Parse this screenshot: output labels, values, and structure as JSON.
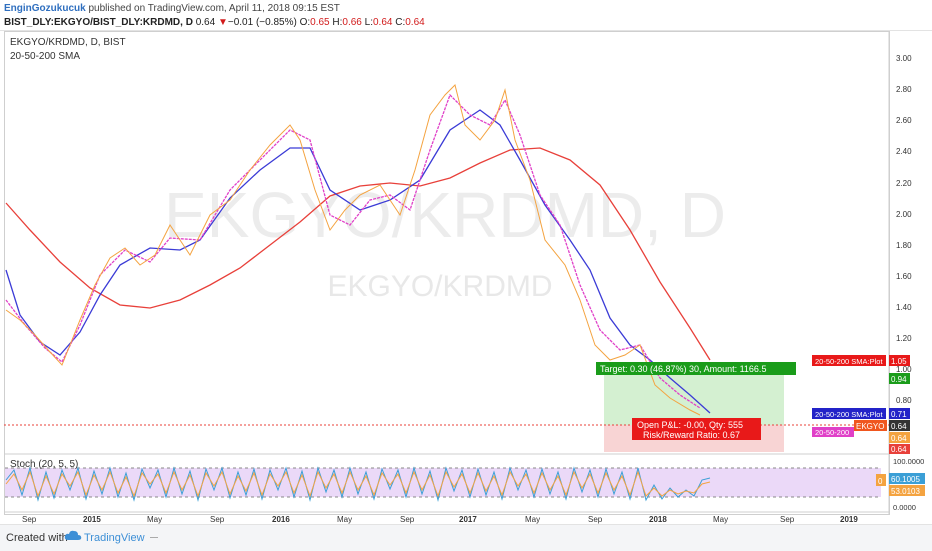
{
  "header": {
    "author": "EnginGozukucuk",
    "published": "published on TradingView.com, April 11, 2018 09:15 EST",
    "symbol_full": "BIST_DLY:EKGYO/BIST_DLY:KRDMD, D",
    "last": "0.64",
    "change": "−0.01 (−0.85%)",
    "o_label": "O:",
    "o_value": "0.65",
    "h_label": "H:",
    "h_value": "0.66",
    "l_label": "L:",
    "l_value": "0.64",
    "c_label": "C:",
    "c_value": "0.64"
  },
  "chart": {
    "symbol_label": "EKGYO/KRDMD, D, BIST",
    "indicator_label": "20-50-200 SMA",
    "watermark_big": "EKGYO/KRDMD, D",
    "watermark_small": "EKGYO/KRDMD",
    "price_ticks": [
      "3.00",
      "2.80",
      "2.60",
      "2.40",
      "2.20",
      "2.00",
      "1.80",
      "1.60",
      "1.40",
      "1.20",
      "1.00",
      "0.80"
    ],
    "time_ticks": [
      "Sep",
      "2015",
      "May",
      "Sep",
      "2016",
      "May",
      "Sep",
      "2017",
      "May",
      "Sep",
      "2018",
      "May",
      "Sep",
      "2019"
    ],
    "target_label": "Target: 0.30 (46.87%) 30, Amount: 1166.5",
    "pnl_label": "Open P&L: -0.00, Qty: 555",
    "rr_label": "Risk/Reward Ratio: 0.67",
    "tags": {
      "sma200_name": "20-50-200 SMA:Plot",
      "sma200_value": "1.05",
      "target_value": "0.94",
      "sma50_name": "20-50-200 SMA:Plot",
      "sma50_value": "0.71",
      "price_value": "0.64",
      "sma20_name": "20-50-200",
      "symbol_tag": "EKGYO",
      "entry_value": "0.64",
      "stop_value": "0.64"
    },
    "colors": {
      "sma20": "#e040c8",
      "sma50": "#3b3bd6",
      "sma200": "#e8403a",
      "price": "#f4a340",
      "target": "#1a9c1a",
      "stop": "#e81919"
    }
  },
  "stoch": {
    "label": "Stoch (20, 5, 5)",
    "ticks": [
      "100.0000",
      "0.0000"
    ],
    "k_value": "60.1005",
    "d_value": "53.0103",
    "marker": "0"
  },
  "footer": {
    "created": "Created with",
    "brand": "TradingView"
  }
}
